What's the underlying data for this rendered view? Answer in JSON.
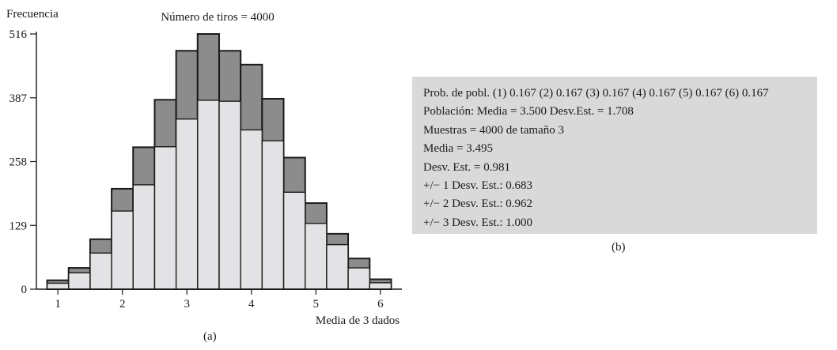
{
  "chart_data": {
    "type": "bar",
    "title": "Número de tiros = 4000",
    "ylabel": "Frecuencia",
    "xlabel": "Media de 3 dados",
    "x_ticks": [
      1,
      2,
      3,
      4,
      5,
      6
    ],
    "y_ticks": [
      0,
      129,
      258,
      387,
      516
    ],
    "xlim": [
      0.667,
      6.333
    ],
    "ylim": [
      0,
      516
    ],
    "bin_width": 0.3333,
    "bin_centers": [
      1.0,
      1.333,
      1.667,
      2.0,
      2.333,
      2.667,
      3.0,
      3.333,
      3.667,
      4.0,
      4.333,
      4.667,
      5.0,
      5.333,
      5.667,
      6.0
    ],
    "series": [
      {
        "values": [
          18,
          43,
          101,
          203,
          287,
          383,
          482,
          516,
          482,
          454,
          385,
          266,
          174,
          112,
          62,
          20
        ],
        "color": "#8c8c8c"
      },
      {
        "values": [
          12,
          33,
          73,
          158,
          211,
          288,
          344,
          382,
          380,
          322,
          300,
          196,
          133,
          90,
          43,
          13
        ],
        "color": "#e3e3e6"
      }
    ],
    "grid": false,
    "legend": "none"
  },
  "captions": {
    "a": "(a)",
    "b": "(b)"
  },
  "stats": [
    "Prob. de pobl. (1) 0.167 (2) 0.167 (3) 0.167 (4) 0.167 (5) 0.167 (6) 0.167",
    "Población: Media = 3.500   Desv.Est. = 1.708",
    "Muestras = 4000 de tamaño 3",
    "Media = 3.495",
    "Desv. Est. = 0.981",
    "+/− 1 Desv. Est.: 0.683",
    "+/− 2 Desv. Est.: 0.962",
    "+/− 3 Desv. Est.: 1.000"
  ]
}
